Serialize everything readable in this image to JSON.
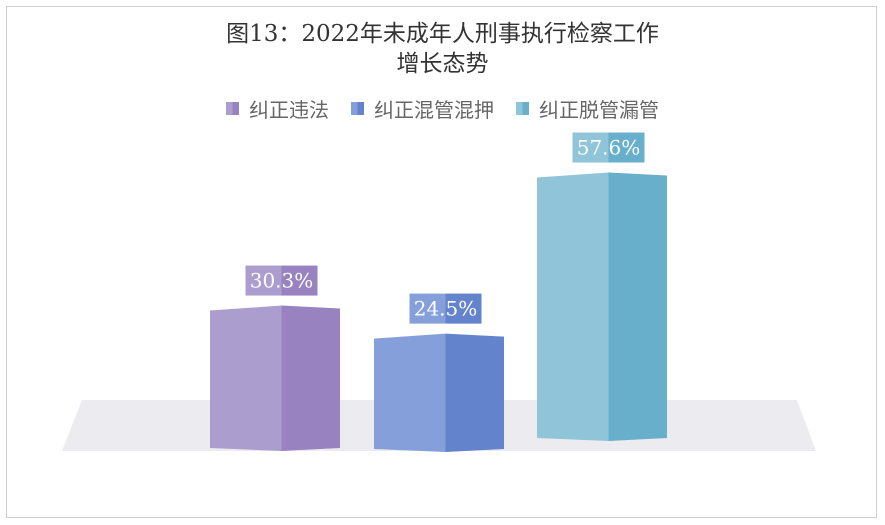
{
  "chart_data": {
    "type": "bar",
    "title": "图13：2022年未成年人刑事执行检察工作",
    "subtitle": "增长态势",
    "categories": [
      "纠正违法",
      "纠正混管混押",
      "纠正脱管漏管"
    ],
    "values": [
      30.3,
      24.5,
      57.6
    ],
    "labels": [
      "30.3%",
      "24.5%",
      "57.6%"
    ],
    "unit": "%",
    "legend": [
      "纠正违法",
      "纠正混管混押",
      "纠正脱管漏管"
    ],
    "legend_position": "top",
    "grid": false,
    "style": "3d-column",
    "colors": [
      {
        "light": "#ac9dcf",
        "dark": "#9882c0"
      },
      {
        "light": "#849fd9",
        "dark": "#6383cc"
      },
      {
        "light": "#8fc4d9",
        "dark": "#68afcb"
      }
    ]
  }
}
